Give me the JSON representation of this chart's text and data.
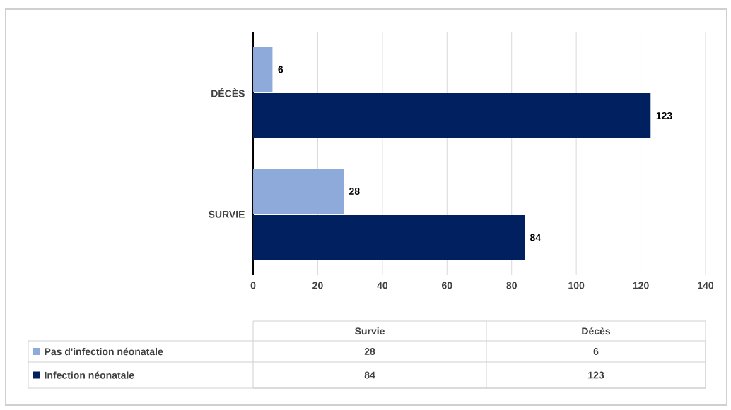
{
  "chart_data": {
    "type": "bar",
    "orientation": "horizontal",
    "categories": [
      "DÉCÈS",
      "SURVIE"
    ],
    "series": [
      {
        "name": "Pas d'infection néonatale",
        "color": "#8eaadb",
        "values": [
          6,
          28
        ]
      },
      {
        "name": "Infection néonatale",
        "color": "#002060",
        "values": [
          123,
          84
        ]
      }
    ],
    "xlim": [
      0,
      140
    ],
    "xticks": [
      0,
      20,
      40,
      60,
      80,
      100,
      120,
      140
    ],
    "grid": "x",
    "legend": "bottom",
    "data_labels": true,
    "annotations": [
      "Survie",
      "Décès",
      "28",
      "6",
      "84",
      "123"
    ]
  }
}
